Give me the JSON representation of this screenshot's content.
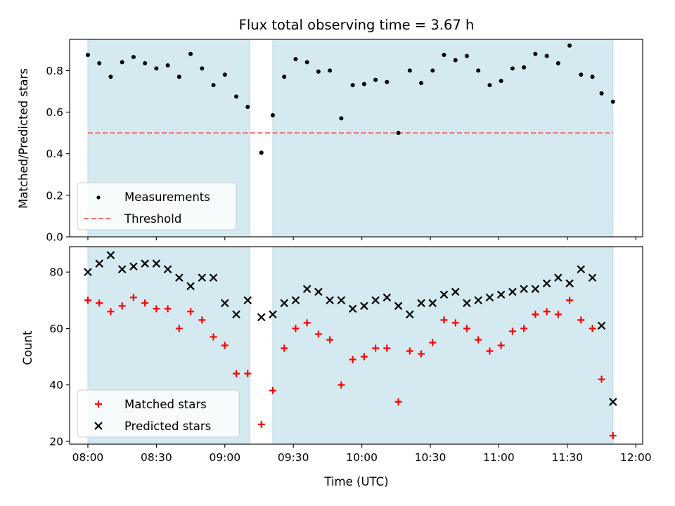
{
  "chart_data": [
    {
      "type": "scatter",
      "title": "Flux total observing time = 3.67 h",
      "xlabel": "",
      "ylabel": "Matched/Predicted stars",
      "xlim": [
        "07:52",
        "12:03"
      ],
      "ylim": [
        0,
        0.95
      ],
      "yticks": [
        "0.0",
        "0.2",
        "0.4",
        "0.6",
        "0.8"
      ],
      "shaded_spans": [
        [
          "08:00",
          "09:11"
        ],
        [
          "09:21",
          "11:50"
        ]
      ],
      "threshold": 0.5,
      "legend_position": "lower left",
      "legend": {
        "measurements": "Measurements",
        "threshold": "Threshold"
      },
      "series": [
        {
          "name": "Measurements",
          "marker": "dot",
          "color": "#000000",
          "x": [
            "08:00",
            "08:05",
            "08:10",
            "08:15",
            "08:20",
            "08:25",
            "08:30",
            "08:35",
            "08:40",
            "08:45",
            "08:50",
            "08:55",
            "09:00",
            "09:05",
            "09:10",
            "09:16",
            "09:21",
            "09:26",
            "09:31",
            "09:36",
            "09:41",
            "09:46",
            "09:51",
            "09:56",
            "10:01",
            "10:06",
            "10:11",
            "10:16",
            "10:21",
            "10:26",
            "10:31",
            "10:36",
            "10:41",
            "10:46",
            "10:51",
            "10:56",
            "11:01",
            "11:06",
            "11:11",
            "11:16",
            "11:21",
            "11:26",
            "11:31",
            "11:36",
            "11:41",
            "11:45",
            "11:50"
          ],
          "y": [
            0.875,
            0.835,
            0.77,
            0.84,
            0.865,
            0.835,
            0.81,
            0.825,
            0.77,
            0.88,
            0.81,
            0.73,
            0.78,
            0.675,
            0.625,
            0.405,
            0.585,
            0.77,
            0.855,
            0.84,
            0.795,
            0.8,
            0.57,
            0.73,
            0.735,
            0.755,
            0.745,
            0.5,
            0.8,
            0.74,
            0.8,
            0.875,
            0.85,
            0.87,
            0.8,
            0.73,
            0.75,
            0.81,
            0.815,
            0.88,
            0.87,
            0.835,
            0.92,
            0.78,
            0.77,
            0.69,
            0.65
          ]
        },
        {
          "name": "Threshold",
          "marker": "dashed-line",
          "color": "#ee7070"
        }
      ]
    },
    {
      "type": "scatter",
      "title": "",
      "xlabel": "Time (UTC)",
      "ylabel": "Count",
      "xlim": [
        "07:52",
        "12:03"
      ],
      "ylim": [
        19,
        89
      ],
      "xticks": [
        "08:00",
        "08:30",
        "09:00",
        "09:30",
        "10:00",
        "10:30",
        "11:00",
        "11:30",
        "12:00"
      ],
      "yticks": [
        "20",
        "40",
        "60",
        "80"
      ],
      "shaded_spans": [
        [
          "08:00",
          "09:11"
        ],
        [
          "09:21",
          "11:50"
        ]
      ],
      "legend_position": "lower left",
      "legend": {
        "matched": "Matched stars",
        "predicted": "Predicted stars"
      },
      "series": [
        {
          "name": "Matched stars",
          "marker": "plus",
          "color": "#ff0000",
          "x": [
            "08:00",
            "08:05",
            "08:10",
            "08:15",
            "08:20",
            "08:25",
            "08:30",
            "08:35",
            "08:40",
            "08:45",
            "08:50",
            "08:55",
            "09:00",
            "09:05",
            "09:10",
            "09:16",
            "09:21",
            "09:26",
            "09:31",
            "09:36",
            "09:41",
            "09:46",
            "09:51",
            "09:56",
            "10:01",
            "10:06",
            "10:11",
            "10:16",
            "10:21",
            "10:26",
            "10:31",
            "10:36",
            "10:41",
            "10:46",
            "10:51",
            "10:56",
            "11:01",
            "11:06",
            "11:11",
            "11:16",
            "11:21",
            "11:26",
            "11:31",
            "11:36",
            "11:41",
            "11:45",
            "11:50"
          ],
          "y": [
            70,
            69,
            66,
            68,
            71,
            69,
            67,
            67,
            60,
            66,
            63,
            57,
            54,
            44,
            44,
            26,
            38,
            53,
            60,
            62,
            58,
            56,
            40,
            49,
            50,
            53,
            53,
            34,
            52,
            51,
            55,
            63,
            62,
            60,
            56,
            52,
            54,
            59,
            60,
            65,
            66,
            65,
            70,
            63,
            60,
            42,
            22
          ]
        },
        {
          "name": "Predicted stars",
          "marker": "x",
          "color": "#000000",
          "x": [
            "08:00",
            "08:05",
            "08:10",
            "08:15",
            "08:20",
            "08:25",
            "08:30",
            "08:35",
            "08:40",
            "08:45",
            "08:50",
            "08:55",
            "09:00",
            "09:05",
            "09:10",
            "09:16",
            "09:21",
            "09:26",
            "09:31",
            "09:36",
            "09:41",
            "09:46",
            "09:51",
            "09:56",
            "10:01",
            "10:06",
            "10:11",
            "10:16",
            "10:21",
            "10:26",
            "10:31",
            "10:36",
            "10:41",
            "10:46",
            "10:51",
            "10:56",
            "11:01",
            "11:06",
            "11:11",
            "11:16",
            "11:21",
            "11:26",
            "11:31",
            "11:36",
            "11:41",
            "11:45",
            "11:50"
          ],
          "y": [
            80,
            83,
            86,
            81,
            82,
            83,
            83,
            81,
            78,
            75,
            78,
            78,
            69,
            65,
            70,
            64,
            65,
            69,
            70,
            74,
            73,
            70,
            70,
            67,
            68,
            70,
            71,
            68,
            65,
            69,
            69,
            72,
            73,
            69,
            70,
            71,
            72,
            73,
            74,
            74,
            76,
            78,
            76,
            81,
            78,
            61,
            34
          ]
        }
      ]
    }
  ],
  "colors": {
    "shade": "#d4eaf0",
    "shade_edge": "#b7dbe6",
    "threshold": "#ee7070",
    "matched": "#ff0000",
    "predicted": "#000000"
  }
}
